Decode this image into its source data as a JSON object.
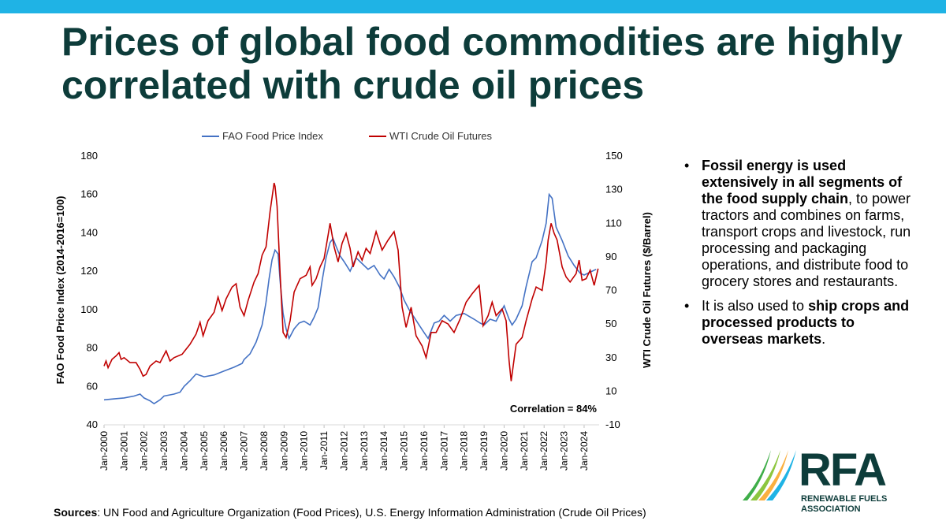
{
  "slide": {
    "title": "Prices of global food commodities are highly correlated with crude oil prices",
    "accent_color": "#1fb3e5",
    "title_color": "#0d3c3a"
  },
  "chart_data": {
    "type": "line",
    "legend": {
      "position": "top",
      "entries": [
        "FAO Food Price Index",
        "WTI Crude Oil Futures"
      ]
    },
    "y_left": {
      "label": "FAO Food Price Index (2014-2016=100)",
      "range": [
        40,
        180
      ],
      "ticks": [
        "40",
        "60",
        "80",
        "100",
        "120",
        "140",
        "160",
        "180"
      ]
    },
    "y_right": {
      "label": "WTI Crude Oil Futures ($/Barrel)",
      "range": [
        -10,
        150
      ],
      "ticks": [
        "-10",
        "10",
        "30",
        "50",
        "70",
        "90",
        "110",
        "130",
        "150"
      ]
    },
    "x": {
      "range": [
        2000,
        2024.75
      ],
      "ticks": [
        "Jan-2000",
        "Jan-2001",
        "Jan-2002",
        "Jan-2003",
        "Jan-2004",
        "Jan-2005",
        "Jan-2006",
        "Jan-2007",
        "Jan-2008",
        "Jan-2009",
        "Jan-2010",
        "Jan-2011",
        "Jan-2012",
        "Jan-2013",
        "Jan-2014",
        "Jan-2015",
        "Jan-2016",
        "Jan-2017",
        "Jan-2018",
        "Jan-2019",
        "Jan-2020",
        "Jan-2021",
        "Jan-2022",
        "Jan-2023",
        "Jan-2024"
      ]
    },
    "annotation": "Correlation = 84%",
    "series": [
      {
        "name": "FAO Food Price Index",
        "axis": "left",
        "color": "#4472c4",
        "points": [
          [
            2000,
            53
          ],
          [
            2000.5,
            53.5
          ],
          [
            2001,
            54
          ],
          [
            2001.5,
            55
          ],
          [
            2001.8,
            56
          ],
          [
            2002,
            54
          ],
          [
            2002.3,
            52.5
          ],
          [
            2002.5,
            51
          ],
          [
            2002.8,
            53
          ],
          [
            2003,
            55
          ],
          [
            2003.5,
            56
          ],
          [
            2003.8,
            57
          ],
          [
            2004,
            60
          ],
          [
            2004.3,
            63
          ],
          [
            2004.6,
            66.5
          ],
          [
            2005,
            65
          ],
          [
            2005.5,
            66
          ],
          [
            2006,
            68
          ],
          [
            2006.5,
            70
          ],
          [
            2006.9,
            72
          ],
          [
            2007,
            74
          ],
          [
            2007.3,
            77
          ],
          [
            2007.6,
            83
          ],
          [
            2007.9,
            92
          ],
          [
            2008.1,
            104
          ],
          [
            2008.25,
            116
          ],
          [
            2008.4,
            126
          ],
          [
            2008.55,
            131
          ],
          [
            2008.7,
            129
          ],
          [
            2008.8,
            115
          ],
          [
            2008.95,
            98
          ],
          [
            2009.1,
            90
          ],
          [
            2009.25,
            85
          ],
          [
            2009.5,
            90
          ],
          [
            2009.75,
            93
          ],
          [
            2010,
            94
          ],
          [
            2010.3,
            92
          ],
          [
            2010.5,
            96
          ],
          [
            2010.7,
            101
          ],
          [
            2010.9,
            115
          ],
          [
            2011.1,
            127
          ],
          [
            2011.3,
            135
          ],
          [
            2011.45,
            137
          ],
          [
            2011.6,
            133
          ],
          [
            2011.8,
            128
          ],
          [
            2012,
            125
          ],
          [
            2012.3,
            120
          ],
          [
            2012.6,
            127
          ],
          [
            2012.8,
            125
          ],
          [
            2013.2,
            121
          ],
          [
            2013.5,
            123
          ],
          [
            2013.8,
            118
          ],
          [
            2014,
            116
          ],
          [
            2014.25,
            121
          ],
          [
            2014.5,
            117
          ],
          [
            2014.75,
            112
          ],
          [
            2015,
            105
          ],
          [
            2015.25,
            100
          ],
          [
            2015.5,
            96
          ],
          [
            2015.75,
            92
          ],
          [
            2016,
            88
          ],
          [
            2016.2,
            85
          ],
          [
            2016.5,
            93
          ],
          [
            2016.75,
            94
          ],
          [
            2017,
            97
          ],
          [
            2017.3,
            94
          ],
          [
            2017.6,
            97
          ],
          [
            2018,
            98
          ],
          [
            2018.5,
            95
          ],
          [
            2018.8,
            93
          ],
          [
            2019,
            92
          ],
          [
            2019.3,
            95
          ],
          [
            2019.6,
            94
          ],
          [
            2020,
            102
          ],
          [
            2020.25,
            95
          ],
          [
            2020.4,
            92
          ],
          [
            2020.6,
            95
          ],
          [
            2020.9,
            102
          ],
          [
            2021.1,
            112
          ],
          [
            2021.4,
            125
          ],
          [
            2021.6,
            127
          ],
          [
            2021.9,
            136
          ],
          [
            2022.1,
            145
          ],
          [
            2022.25,
            160
          ],
          [
            2022.4,
            158
          ],
          [
            2022.6,
            143
          ],
          [
            2022.9,
            136
          ],
          [
            2023.2,
            128
          ],
          [
            2023.5,
            123
          ],
          [
            2023.8,
            119
          ],
          [
            2024,
            118
          ],
          [
            2024.4,
            120
          ],
          [
            2024.6,
            121
          ]
        ]
      },
      {
        "name": "WTI Crude Oil Futures",
        "axis": "right",
        "color": "#c00000",
        "points": [
          [
            2000,
            25
          ],
          [
            2000.1,
            28
          ],
          [
            2000.2,
            24
          ],
          [
            2000.4,
            29
          ],
          [
            2000.6,
            31
          ],
          [
            2000.75,
            33
          ],
          [
            2000.85,
            29
          ],
          [
            2001,
            30
          ],
          [
            2001.3,
            27
          ],
          [
            2001.6,
            27
          ],
          [
            2001.8,
            23
          ],
          [
            2001.95,
            19
          ],
          [
            2002.1,
            20
          ],
          [
            2002.3,
            25
          ],
          [
            2002.6,
            28
          ],
          [
            2002.8,
            27
          ],
          [
            2003.1,
            34
          ],
          [
            2003.3,
            28
          ],
          [
            2003.5,
            30
          ],
          [
            2003.9,
            32
          ],
          [
            2004.1,
            35
          ],
          [
            2004.3,
            38
          ],
          [
            2004.6,
            44
          ],
          [
            2004.8,
            51
          ],
          [
            2004.95,
            43
          ],
          [
            2005.2,
            52
          ],
          [
            2005.5,
            57
          ],
          [
            2005.7,
            66
          ],
          [
            2005.9,
            58
          ],
          [
            2006.1,
            65
          ],
          [
            2006.4,
            72
          ],
          [
            2006.6,
            74
          ],
          [
            2006.8,
            60
          ],
          [
            2007,
            55
          ],
          [
            2007.2,
            64
          ],
          [
            2007.5,
            75
          ],
          [
            2007.7,
            80
          ],
          [
            2007.9,
            91
          ],
          [
            2008.1,
            96
          ],
          [
            2008.3,
            117
          ],
          [
            2008.5,
            134
          ],
          [
            2008.55,
            132
          ],
          [
            2008.65,
            120
          ],
          [
            2008.8,
            80
          ],
          [
            2008.95,
            45
          ],
          [
            2009.1,
            42
          ],
          [
            2009.3,
            52
          ],
          [
            2009.5,
            69
          ],
          [
            2009.8,
            77
          ],
          [
            2010.1,
            79
          ],
          [
            2010.3,
            84
          ],
          [
            2010.4,
            73
          ],
          [
            2010.6,
            77
          ],
          [
            2010.8,
            84
          ],
          [
            2011.0,
            89
          ],
          [
            2011.2,
            103
          ],
          [
            2011.3,
            110
          ],
          [
            2011.5,
            96
          ],
          [
            2011.7,
            87
          ],
          [
            2011.9,
            98
          ],
          [
            2012.1,
            104
          ],
          [
            2012.3,
            95
          ],
          [
            2012.45,
            84
          ],
          [
            2012.7,
            93
          ],
          [
            2012.9,
            88
          ],
          [
            2013.1,
            95
          ],
          [
            2013.3,
            92
          ],
          [
            2013.6,
            105
          ],
          [
            2013.9,
            94
          ],
          [
            2014.2,
            100
          ],
          [
            2014.5,
            105
          ],
          [
            2014.7,
            94
          ],
          [
            2014.9,
            60
          ],
          [
            2015.1,
            48
          ],
          [
            2015.35,
            60
          ],
          [
            2015.6,
            43
          ],
          [
            2015.9,
            37
          ],
          [
            2016.1,
            30
          ],
          [
            2016.35,
            45
          ],
          [
            2016.6,
            45
          ],
          [
            2016.9,
            52
          ],
          [
            2017.2,
            50
          ],
          [
            2017.5,
            45
          ],
          [
            2017.8,
            53
          ],
          [
            2018.1,
            63
          ],
          [
            2018.4,
            68
          ],
          [
            2018.75,
            73
          ],
          [
            2018.95,
            49
          ],
          [
            2019.2,
            55
          ],
          [
            2019.4,
            63
          ],
          [
            2019.6,
            55
          ],
          [
            2019.9,
            59
          ],
          [
            2020.1,
            52
          ],
          [
            2020.25,
            28
          ],
          [
            2020.35,
            16
          ],
          [
            2020.6,
            38
          ],
          [
            2020.9,
            42
          ],
          [
            2021.1,
            52
          ],
          [
            2021.4,
            65
          ],
          [
            2021.6,
            72
          ],
          [
            2021.9,
            70
          ],
          [
            2022.1,
            87
          ],
          [
            2022.2,
            100
          ],
          [
            2022.35,
            110
          ],
          [
            2022.5,
            104
          ],
          [
            2022.65,
            100
          ],
          [
            2022.9,
            84
          ],
          [
            2023.1,
            78
          ],
          [
            2023.3,
            75
          ],
          [
            2023.6,
            80
          ],
          [
            2023.75,
            88
          ],
          [
            2023.9,
            76
          ],
          [
            2024.1,
            77
          ],
          [
            2024.3,
            82
          ],
          [
            2024.5,
            73
          ],
          [
            2024.7,
            83
          ]
        ]
      }
    ]
  },
  "bullets": {
    "b1_bold": "Fossil energy is used extensively in all segments of the food supply chain",
    "b1_rest": ", to power tractors and combines on farms, transport crops and livestock, run processing and packaging operations, and distribute food to grocery stores and restaurants.",
    "b2_pre": "It is also used to ",
    "b2_bold": "ship crops and processed products to overseas markets",
    "b2_post": "."
  },
  "sources": {
    "label": "Sources",
    "text": ": UN Food and Agriculture Organization (Food Prices), U.S. Energy Information Administration (Crude Oil Prices)"
  },
  "logo": {
    "word": "RFA",
    "line1": "RENEWABLE FUELS",
    "line2": "ASSOCIATION"
  }
}
